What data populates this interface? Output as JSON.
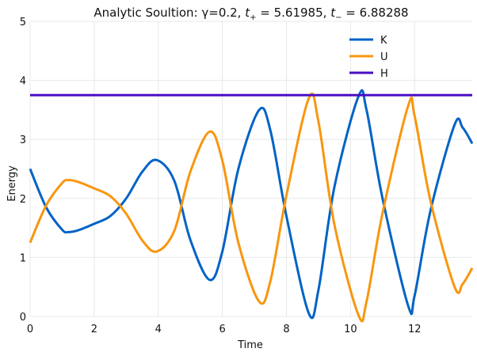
{
  "chart_data": {
    "type": "line",
    "title_prefix": "Analytic Soultion: γ=0.2, ",
    "title_tplus_base": "t",
    "title_tplus_sub": "+",
    "title_tplus_value": " = 5.61985, ",
    "title_tminus_base": "t",
    "title_tminus_sub": "−",
    "title_tminus_value": " = 6.88288",
    "xlabel": "Time",
    "ylabel": "Energy",
    "xlim": [
      0,
      13.8
    ],
    "ylim": [
      0,
      5
    ],
    "xticks": [
      0,
      2,
      4,
      6,
      8,
      10,
      12
    ],
    "yticks": [
      0,
      1,
      2,
      3,
      4,
      5
    ],
    "grid": true,
    "legend_position": "top-right",
    "x": [
      0,
      0.5,
      1.0,
      1.2,
      1.5,
      2.0,
      2.5,
      3.0,
      3.5,
      3.95,
      4.5,
      5.0,
      5.6,
      6.0,
      6.5,
      7.15,
      7.5,
      8.0,
      8.7,
      9.0,
      9.5,
      10.25,
      10.5,
      11.0,
      11.8,
      12.0,
      12.5,
      13.25,
      13.5,
      13.8
    ],
    "series": [
      {
        "name": "K",
        "color": "#0063c6",
        "values": [
          2.5,
          1.85,
          1.47,
          1.43,
          1.46,
          1.57,
          1.7,
          2.0,
          2.45,
          2.65,
          2.3,
          1.3,
          0.62,
          1.1,
          2.5,
          3.5,
          3.15,
          1.7,
          0.05,
          0.45,
          2.2,
          3.73,
          3.5,
          2.0,
          0.18,
          0.35,
          1.8,
          3.25,
          3.2,
          2.93
        ]
      },
      {
        "name": "U",
        "color": "#f8960f",
        "values": [
          1.25,
          1.88,
          2.26,
          2.31,
          2.28,
          2.17,
          2.04,
          1.74,
          1.29,
          1.1,
          1.45,
          2.45,
          3.13,
          2.64,
          1.25,
          0.25,
          0.6,
          2.05,
          3.7,
          3.3,
          1.55,
          0.02,
          0.25,
          1.75,
          3.57,
          3.4,
          1.95,
          0.5,
          0.55,
          0.82
        ]
      },
      {
        "name": "H",
        "color": "#4b0ec2",
        "values": [
          3.75,
          3.75,
          3.75,
          3.75,
          3.75,
          3.75,
          3.75,
          3.75,
          3.75,
          3.75,
          3.75,
          3.75,
          3.75,
          3.75,
          3.75,
          3.75,
          3.75,
          3.75,
          3.75,
          3.75,
          3.75,
          3.75,
          3.75,
          3.75,
          3.75,
          3.75,
          3.75,
          3.75,
          3.75,
          3.75
        ]
      }
    ]
  }
}
